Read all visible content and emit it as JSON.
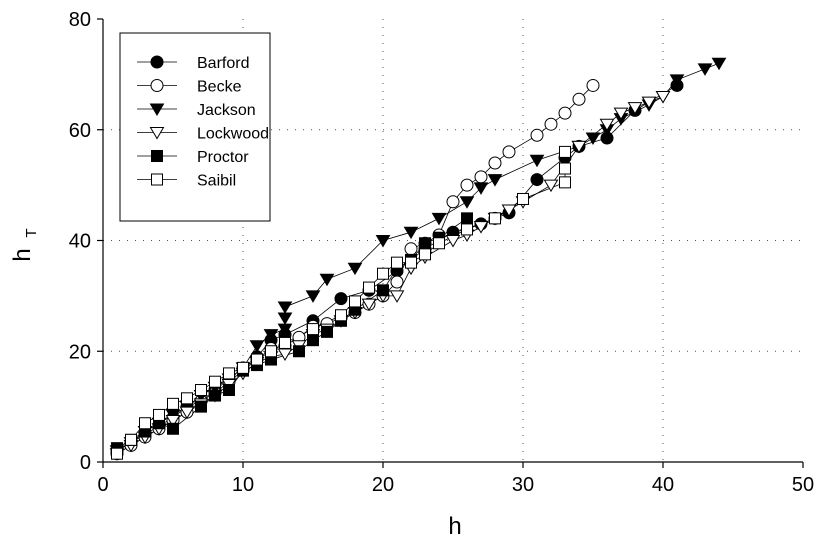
{
  "chart_data": {
    "type": "scatter",
    "xlabel": "h",
    "ylabel": "h",
    "ylabel_subscript": "T",
    "xlim": [
      0,
      50
    ],
    "ylim": [
      0,
      80
    ],
    "xticks": [
      "0",
      "10",
      "20",
      "30",
      "40",
      "50"
    ],
    "yticks": [
      "0",
      "20",
      "40",
      "60",
      "80"
    ],
    "grid": "dotted",
    "legend_position": "top-left",
    "series": [
      {
        "name": "Barford",
        "marker": "circle-filled",
        "color": "#000000",
        "points": [
          [
            1,
            2
          ],
          [
            2,
            3.5
          ],
          [
            3,
            5
          ],
          [
            4,
            6.5
          ],
          [
            5,
            8
          ],
          [
            6,
            10
          ],
          [
            7,
            11
          ],
          [
            8,
            13
          ],
          [
            9,
            15
          ],
          [
            10,
            17
          ],
          [
            11,
            19
          ],
          [
            12,
            22
          ],
          [
            13,
            23
          ],
          [
            15,
            25.5
          ],
          [
            17,
            29.5
          ],
          [
            19,
            31
          ],
          [
            21,
            34.5
          ],
          [
            23,
            38.5
          ],
          [
            25,
            41.5
          ],
          [
            27,
            43
          ],
          [
            28,
            44
          ],
          [
            29,
            45
          ],
          [
            31,
            51
          ],
          [
            33,
            55
          ],
          [
            34,
            57
          ],
          [
            36,
            58.5
          ],
          [
            38,
            63.5
          ],
          [
            41,
            68
          ]
        ]
      },
      {
        "name": "Becke",
        "marker": "circle-open",
        "color": "#000000",
        "points": [
          [
            1,
            1.5
          ],
          [
            2,
            3
          ],
          [
            3,
            4.5
          ],
          [
            4,
            6
          ],
          [
            5,
            7.5
          ],
          [
            6,
            9
          ],
          [
            7,
            11
          ],
          [
            8,
            12.5
          ],
          [
            9,
            14.5
          ],
          [
            10,
            16.5
          ],
          [
            11,
            18.5
          ],
          [
            12,
            20.5
          ],
          [
            13,
            21
          ],
          [
            14,
            22.5
          ],
          [
            15,
            24.5
          ],
          [
            16,
            25
          ],
          [
            17,
            26
          ],
          [
            18,
            27
          ],
          [
            19,
            28.5
          ],
          [
            20,
            30
          ],
          [
            21,
            32.5
          ],
          [
            22,
            38.5
          ],
          [
            23,
            39.5
          ],
          [
            24,
            41
          ],
          [
            25,
            47
          ],
          [
            26,
            50
          ],
          [
            27,
            51.5
          ],
          [
            28,
            54
          ],
          [
            29,
            56
          ],
          [
            31,
            59
          ],
          [
            32,
            61
          ],
          [
            33,
            63
          ],
          [
            34,
            65.5
          ],
          [
            35,
            68
          ]
        ]
      },
      {
        "name": "Jackson",
        "marker": "triangle-down-filled",
        "color": "#000000",
        "points": [
          [
            1,
            2
          ],
          [
            2,
            3.5
          ],
          [
            3,
            5.5
          ],
          [
            4,
            7
          ],
          [
            5,
            8.5
          ],
          [
            6,
            10
          ],
          [
            7,
            12
          ],
          [
            8,
            13.5
          ],
          [
            9,
            15
          ],
          [
            10,
            17
          ],
          [
            11,
            21
          ],
          [
            12,
            23
          ],
          [
            13,
            24
          ],
          [
            13,
            26
          ],
          [
            13,
            28
          ],
          [
            15,
            30
          ],
          [
            16,
            33
          ],
          [
            18,
            35
          ],
          [
            20,
            40
          ],
          [
            22,
            41.5
          ],
          [
            24,
            44
          ],
          [
            26,
            47
          ],
          [
            27,
            49.5
          ],
          [
            28,
            51
          ],
          [
            31,
            54.5
          ],
          [
            34,
            57
          ],
          [
            35,
            58.5
          ],
          [
            36,
            60
          ],
          [
            37,
            62
          ],
          [
            39,
            64.5
          ],
          [
            40,
            66
          ],
          [
            41,
            69
          ],
          [
            43,
            71
          ],
          [
            44,
            72
          ]
        ]
      },
      {
        "name": "Lockwood",
        "marker": "triangle-down-open",
        "color": "#000000",
        "points": [
          [
            1,
            1.5
          ],
          [
            2,
            3
          ],
          [
            3,
            4.5
          ],
          [
            4,
            6
          ],
          [
            5,
            7.5
          ],
          [
            6,
            9
          ],
          [
            7,
            10.5
          ],
          [
            8,
            12
          ],
          [
            9,
            14
          ],
          [
            10,
            16
          ],
          [
            11,
            18
          ],
          [
            12,
            19
          ],
          [
            13,
            19.5
          ],
          [
            14,
            21
          ],
          [
            15,
            23
          ],
          [
            16,
            24
          ],
          [
            17,
            25.5
          ],
          [
            18,
            27
          ],
          [
            19,
            28.5
          ],
          [
            20,
            30
          ],
          [
            21,
            30
          ],
          [
            22,
            35
          ],
          [
            23,
            37
          ],
          [
            25,
            40
          ],
          [
            26,
            41
          ],
          [
            27,
            42.5
          ],
          [
            28,
            44
          ],
          [
            29,
            45.5
          ],
          [
            30,
            47
          ],
          [
            32,
            50
          ],
          [
            34,
            57
          ],
          [
            36,
            61
          ],
          [
            37,
            63
          ],
          [
            38,
            64
          ],
          [
            39,
            65
          ],
          [
            40,
            66
          ]
        ]
      },
      {
        "name": "Proctor",
        "marker": "square-filled",
        "color": "#000000",
        "points": [
          [
            1,
            2.5
          ],
          [
            2,
            4
          ],
          [
            3,
            5.5
          ],
          [
            4,
            7
          ],
          [
            5,
            6
          ],
          [
            7,
            10
          ],
          [
            8,
            12
          ],
          [
            9,
            13
          ],
          [
            10,
            16.5
          ],
          [
            11,
            17.5
          ],
          [
            12,
            18.5
          ],
          [
            14,
            20
          ],
          [
            15,
            22
          ],
          [
            16,
            23.5
          ],
          [
            17,
            25.5
          ],
          [
            18,
            27.5
          ],
          [
            20,
            31
          ],
          [
            21,
            35
          ],
          [
            22,
            36.5
          ],
          [
            23,
            39.5
          ],
          [
            24,
            40.5
          ],
          [
            26,
            44
          ]
        ]
      },
      {
        "name": "Saibil",
        "marker": "square-open",
        "color": "#000000",
        "points": [
          [
            1,
            1.5
          ],
          [
            2,
            4
          ],
          [
            3,
            7
          ],
          [
            4,
            8.5
          ],
          [
            5,
            10.5
          ],
          [
            6,
            11.5
          ],
          [
            7,
            13
          ],
          [
            8,
            14.5
          ],
          [
            9,
            16
          ],
          [
            10,
            17
          ],
          [
            11,
            18.5
          ],
          [
            12,
            20
          ],
          [
            13,
            21.5
          ],
          [
            15,
            24
          ],
          [
            17,
            26.5
          ],
          [
            18,
            29
          ],
          [
            19,
            31.5
          ],
          [
            20,
            34
          ],
          [
            21,
            36
          ],
          [
            22,
            36
          ],
          [
            23,
            37.5
          ],
          [
            24,
            39.5
          ],
          [
            26,
            42
          ],
          [
            28,
            44
          ],
          [
            30,
            47.5
          ],
          [
            33,
            50.5
          ],
          [
            33,
            53
          ],
          [
            33,
            56
          ]
        ]
      }
    ]
  }
}
